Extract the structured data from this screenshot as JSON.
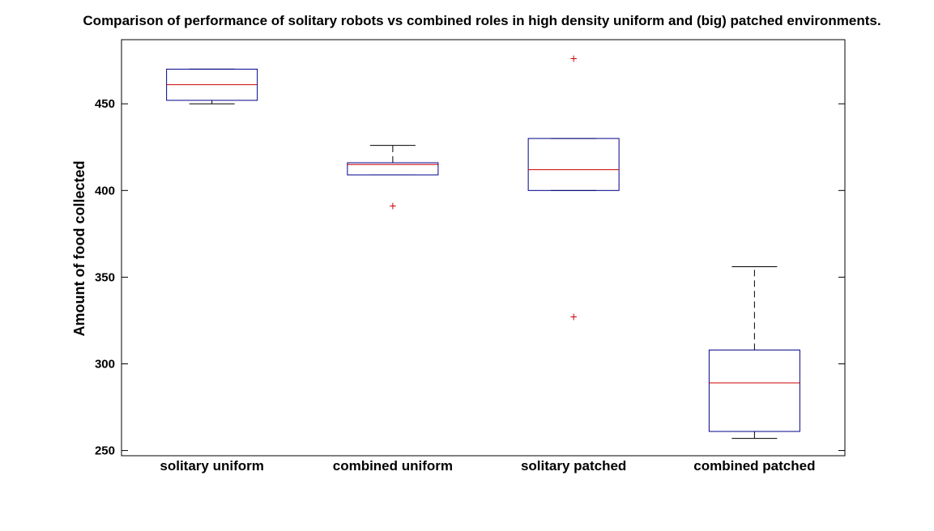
{
  "chart_data": {
    "type": "box",
    "title": "Comparison of performance of solitary robots vs combined roles in high density uniform and (big) patched environments.",
    "xlabel": "",
    "ylabel": "Amount of food collected",
    "categories": [
      "solitary uniform",
      "combined uniform",
      "solitary patched",
      "combined patched"
    ],
    "ylim": [
      247,
      487
    ],
    "yticks": [
      250,
      300,
      350,
      400,
      450
    ],
    "boxes": [
      {
        "category": "solitary uniform",
        "lower_whisker": 450,
        "q1": 452,
        "median": 461,
        "q3": 470,
        "upper_whisker": 470,
        "outliers": []
      },
      {
        "category": "combined uniform",
        "lower_whisker": 409,
        "q1": 409,
        "median": 415,
        "q3": 416,
        "upper_whisker": 426,
        "outliers": [
          391
        ]
      },
      {
        "category": "solitary patched",
        "lower_whisker": 400,
        "q1": 400,
        "median": 412,
        "q3": 430,
        "upper_whisker": 430,
        "outliers": [
          476,
          327
        ]
      },
      {
        "category": "combined patched",
        "lower_whisker": 257,
        "q1": 261,
        "median": 289,
        "q3": 308,
        "upper_whisker": 356,
        "outliers": []
      }
    ],
    "colors": {
      "box": "#00008b",
      "median": "#cc0000",
      "whisker": "#000000",
      "outlier": "#cc0000"
    },
    "grid": false,
    "legend": "none"
  }
}
